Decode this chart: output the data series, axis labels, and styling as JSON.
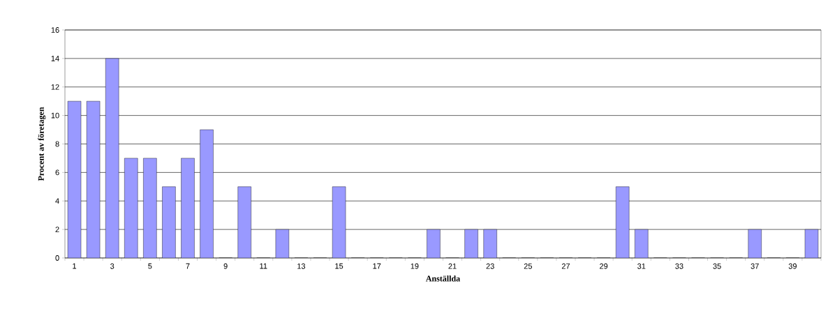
{
  "chart_data": {
    "type": "bar",
    "xlabel": "Anställda",
    "ylabel": "Procent av företagen",
    "categories": [
      "1",
      null,
      "3",
      null,
      "5",
      null,
      "7",
      null,
      "9",
      null,
      "11",
      null,
      "13",
      null,
      "15",
      null,
      "17",
      null,
      "19",
      null,
      "21",
      null,
      "23",
      null,
      "25",
      null,
      "27",
      null,
      "29",
      null,
      "31",
      null,
      "33",
      null,
      "35",
      null,
      "37",
      null,
      "39",
      null
    ],
    "values": [
      11,
      11,
      14,
      7,
      7,
      5,
      7,
      9,
      0,
      5,
      0,
      2,
      0,
      0,
      5,
      0,
      0,
      0,
      0,
      2,
      0,
      2,
      2,
      0,
      0,
      0,
      0,
      0,
      0,
      5,
      2,
      0,
      0,
      0,
      0,
      0,
      2,
      0,
      0,
      2
    ],
    "color": "#9999ff",
    "ylim": [
      0,
      16
    ],
    "yticks": [
      0,
      2,
      4,
      6,
      8,
      10,
      12,
      14,
      16
    ],
    "grid": "y"
  }
}
